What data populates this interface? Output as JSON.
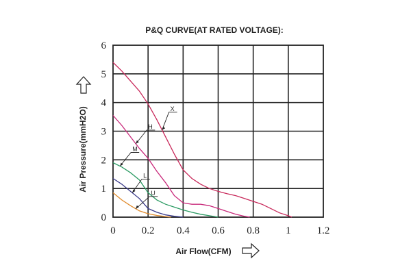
{
  "chart_data": {
    "type": "line",
    "title": "P&Q CURVE(AT RATED VOLTAGE):",
    "xlabel": "Air Flow(CFM)",
    "ylabel": "Air Pressure(mmH2O)",
    "xlim": [
      0,
      1.2
    ],
    "ylim": [
      0,
      6
    ],
    "x_ticks": [
      "0",
      "0.2",
      "0.4",
      "0.6",
      "0.8",
      "1",
      "1.2"
    ],
    "y_ticks": [
      "0",
      "1",
      "2",
      "3",
      "4",
      "5",
      "6"
    ],
    "grid": true,
    "series": [
      {
        "name": "X",
        "color": "#c8285a",
        "points": [
          [
            0,
            5.4
          ],
          [
            0.05,
            5.1
          ],
          [
            0.1,
            4.75
          ],
          [
            0.15,
            4.4
          ],
          [
            0.2,
            3.95
          ],
          [
            0.25,
            3.4
          ],
          [
            0.3,
            2.8
          ],
          [
            0.35,
            2.2
          ],
          [
            0.4,
            1.65
          ],
          [
            0.45,
            1.35
          ],
          [
            0.5,
            1.15
          ],
          [
            0.55,
            1.0
          ],
          [
            0.6,
            0.9
          ],
          [
            0.65,
            0.82
          ],
          [
            0.7,
            0.75
          ],
          [
            0.75,
            0.65
          ],
          [
            0.8,
            0.55
          ],
          [
            0.85,
            0.45
          ],
          [
            0.9,
            0.3
          ],
          [
            0.95,
            0.15
          ],
          [
            1.0,
            0.05
          ],
          [
            1.02,
            0.0
          ]
        ]
      },
      {
        "name": "H",
        "color": "#c8287a",
        "points": [
          [
            0,
            3.55
          ],
          [
            0.05,
            3.2
          ],
          [
            0.1,
            2.8
          ],
          [
            0.15,
            2.4
          ],
          [
            0.2,
            2.05
          ],
          [
            0.25,
            1.6
          ],
          [
            0.3,
            1.2
          ],
          [
            0.35,
            0.75
          ],
          [
            0.4,
            0.5
          ],
          [
            0.45,
            0.45
          ],
          [
            0.5,
            0.45
          ],
          [
            0.55,
            0.4
          ],
          [
            0.6,
            0.3
          ],
          [
            0.65,
            0.2
          ],
          [
            0.7,
            0.1
          ],
          [
            0.75,
            0.03
          ],
          [
            0.78,
            0.0
          ]
        ]
      },
      {
        "name": "M",
        "color": "#2a9a62",
        "points": [
          [
            0,
            1.9
          ],
          [
            0.05,
            1.75
          ],
          [
            0.1,
            1.55
          ],
          [
            0.15,
            1.3
          ],
          [
            0.2,
            0.85
          ],
          [
            0.25,
            0.6
          ],
          [
            0.3,
            0.45
          ],
          [
            0.35,
            0.35
          ],
          [
            0.4,
            0.25
          ],
          [
            0.45,
            0.17
          ],
          [
            0.5,
            0.1
          ],
          [
            0.55,
            0.05
          ],
          [
            0.6,
            0.0
          ]
        ]
      },
      {
        "name": "L",
        "color": "#3a3a8a",
        "points": [
          [
            0,
            1.35
          ],
          [
            0.05,
            1.15
          ],
          [
            0.1,
            0.9
          ],
          [
            0.15,
            0.65
          ],
          [
            0.2,
            0.3
          ],
          [
            0.25,
            0.17
          ],
          [
            0.3,
            0.08
          ],
          [
            0.35,
            0.03
          ],
          [
            0.4,
            0.0
          ]
        ]
      },
      {
        "name": "U",
        "color": "#e08a2a",
        "points": [
          [
            0,
            0.85
          ],
          [
            0.05,
            0.6
          ],
          [
            0.1,
            0.4
          ],
          [
            0.15,
            0.22
          ],
          [
            0.2,
            0.12
          ],
          [
            0.25,
            0.06
          ],
          [
            0.3,
            0.02
          ],
          [
            0.33,
            0.0
          ]
        ]
      }
    ]
  }
}
